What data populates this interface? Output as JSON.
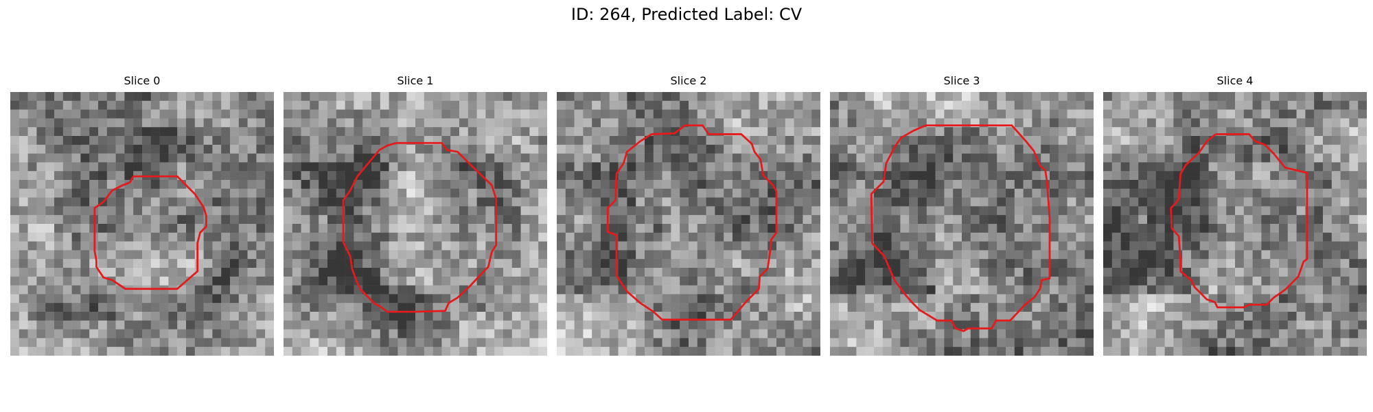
{
  "figure": {
    "title": "ID: 264, Predicted Label: CV"
  },
  "panels": [
    {
      "title": "Slice 0",
      "seed": 11,
      "dark_spot": "top-center",
      "inner": "mottled"
    },
    {
      "title": "Slice 1",
      "seed": 29,
      "dark_spot": "left",
      "inner": "bright"
    },
    {
      "title": "Slice 2",
      "seed": 47,
      "dark_spot": "left",
      "inner": "mottled"
    },
    {
      "title": "Slice 3",
      "seed": 63,
      "dark_spot": "left",
      "inner": "mottled"
    },
    {
      "title": "Slice 4",
      "seed": 81,
      "dark_spot": "left",
      "inner": "speckled"
    }
  ],
  "colors": {
    "contour": "#e41a1c",
    "background": "#ffffff"
  }
}
